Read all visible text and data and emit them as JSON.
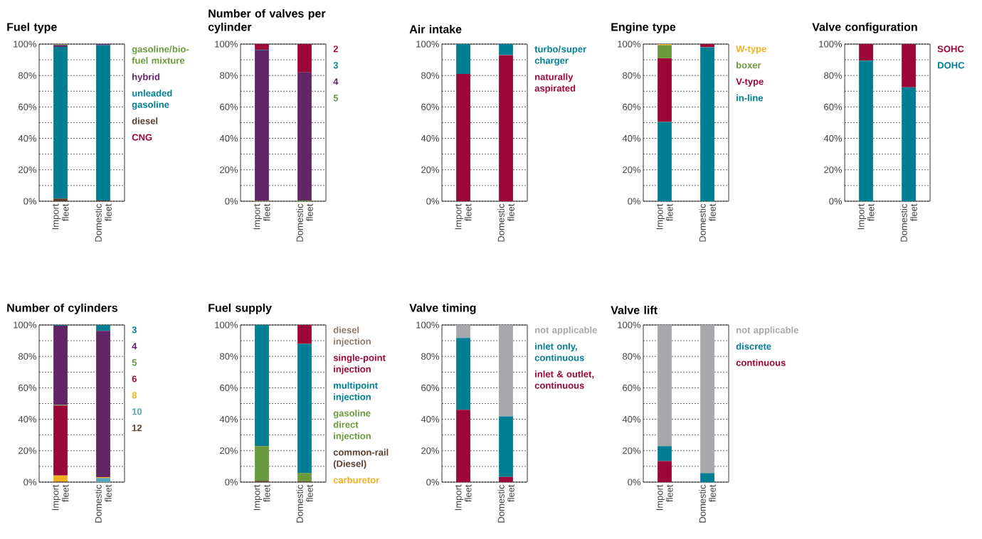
{
  "chart_data": [
    {
      "type": "bar",
      "stacked": true,
      "title": "Fuel type",
      "categories": [
        "Import fleet",
        "Domestic fleet"
      ],
      "ylim": [
        0,
        100
      ],
      "yticks": [
        {
          "value": 0,
          "label": "0%"
        },
        {
          "value": 10,
          "label": null
        },
        {
          "value": 20,
          "label": "20%"
        },
        {
          "value": 30,
          "label": null
        },
        {
          "value": 40,
          "label": "40%"
        },
        {
          "value": 50,
          "label": null
        },
        {
          "value": 60,
          "label": "60%"
        },
        {
          "value": 70,
          "label": null
        },
        {
          "value": 80,
          "label": "80%"
        },
        {
          "value": 90,
          "label": null
        },
        {
          "value": 100,
          "label": "100%"
        }
      ],
      "grid": "y",
      "legend": "right",
      "series": [
        {
          "name": "CNG",
          "color": "#9b0737",
          "values": [
            null,
            0
          ]
        },
        {
          "name": "diesel",
          "color": "#5c3d2e",
          "values": [
            1.7,
            0.5
          ]
        },
        {
          "name": "unleaded gasoline",
          "color": "#007f94",
          "values": [
            96.5,
            98.8
          ]
        },
        {
          "name": "hybrid",
          "color": "#622567",
          "values": [
            1.2,
            0.7
          ]
        },
        {
          "name": "gasoline/bio-fuel mixture",
          "color": "#6a983c",
          "values": [
            0.6,
            0
          ]
        }
      ]
    },
    {
      "type": "bar",
      "stacked": true,
      "title": "Number of valves per cylinder",
      "categories": [
        "Import fleet",
        "Domestic fleet"
      ],
      "ylim": [
        0,
        100
      ],
      "yticks": [
        {
          "value": 0,
          "label": "0%"
        },
        {
          "value": 10,
          "label": null
        },
        {
          "value": 20,
          "label": "20%"
        },
        {
          "value": 30,
          "label": null
        },
        {
          "value": 40,
          "label": "40%"
        },
        {
          "value": 50,
          "label": null
        },
        {
          "value": 60,
          "label": "60%"
        },
        {
          "value": 70,
          "label": null
        },
        {
          "value": 80,
          "label": "80%"
        },
        {
          "value": 90,
          "label": null
        },
        {
          "value": 100,
          "label": "100%"
        }
      ],
      "grid": "y",
      "legend": "right",
      "series": [
        {
          "name": "5",
          "color": "#6a983c",
          "values": [
            0.3,
            0.5
          ]
        },
        {
          "name": "4",
          "color": "#622567",
          "values": [
            95.7,
            81.5
          ]
        },
        {
          "name": "3",
          "color": "#007f94",
          "values": [
            0.4,
            0
          ]
        },
        {
          "name": "2",
          "color": "#9b0737",
          "values": [
            3.6,
            18
          ]
        }
      ]
    },
    {
      "type": "bar",
      "stacked": true,
      "title": "Air intake",
      "categories": [
        "Import fleet",
        "Domestic fleet"
      ],
      "ylim": [
        0,
        100
      ],
      "yticks": [
        {
          "value": 0,
          "label": "0%"
        },
        {
          "value": 10,
          "label": null
        },
        {
          "value": 20,
          "label": "20%"
        },
        {
          "value": 30,
          "label": null
        },
        {
          "value": 40,
          "label": "40%"
        },
        {
          "value": 50,
          "label": null
        },
        {
          "value": 60,
          "label": "60%"
        },
        {
          "value": 70,
          "label": null
        },
        {
          "value": 80,
          "label": "80%"
        },
        {
          "value": 90,
          "label": null
        },
        {
          "value": 100,
          "label": "100%"
        }
      ],
      "grid": "y",
      "legend": "right",
      "series": [
        {
          "name": "naturally aspirated",
          "color": "#9b0737",
          "values": [
            81,
            93
          ]
        },
        {
          "name": "turbo/super charger",
          "color": "#007f94",
          "values": [
            19,
            7
          ]
        }
      ]
    },
    {
      "type": "bar",
      "stacked": true,
      "title": "Engine type",
      "categories": [
        "Import fleet",
        "Domestic fleet"
      ],
      "ylim": [
        0,
        100
      ],
      "yticks": [
        {
          "value": 0,
          "label": "0%"
        },
        {
          "value": 10,
          "label": null
        },
        {
          "value": 20,
          "label": "20%"
        },
        {
          "value": 30,
          "label": null
        },
        {
          "value": 40,
          "label": "40%"
        },
        {
          "value": 50,
          "label": null
        },
        {
          "value": 60,
          "label": "60%"
        },
        {
          "value": 70,
          "label": null
        },
        {
          "value": 80,
          "label": "80%"
        },
        {
          "value": 90,
          "label": null
        },
        {
          "value": 100,
          "label": "100%"
        }
      ],
      "grid": "y",
      "legend": "right",
      "series": [
        {
          "name": "in-line",
          "color": "#007f94",
          "values": [
            50.5,
            98
          ]
        },
        {
          "name": "V-type",
          "color": "#9b0737",
          "values": [
            40.5,
            2
          ]
        },
        {
          "name": "boxer",
          "color": "#6a983c",
          "values": [
            8.3,
            0
          ]
        },
        {
          "name": "W-type",
          "color": "#f2b01e",
          "values": [
            0.7,
            0
          ]
        }
      ]
    },
    {
      "type": "bar",
      "stacked": true,
      "title": "Valve configuration",
      "categories": [
        "Import fleet",
        "Domestic fleet"
      ],
      "ylim": [
        0,
        100
      ],
      "yticks": [
        {
          "value": 0,
          "label": "0%"
        },
        {
          "value": 10,
          "label": null
        },
        {
          "value": 20,
          "label": "20%"
        },
        {
          "value": 30,
          "label": null
        },
        {
          "value": 40,
          "label": "40%"
        },
        {
          "value": 50,
          "label": null
        },
        {
          "value": 60,
          "label": "60%"
        },
        {
          "value": 70,
          "label": null
        },
        {
          "value": 80,
          "label": "80%"
        },
        {
          "value": 90,
          "label": null
        },
        {
          "value": 100,
          "label": "100%"
        }
      ],
      "grid": "y",
      "legend": "right",
      "series": [
        {
          "name": "DOHC",
          "color": "#007f94",
          "values": [
            89.5,
            72.5
          ]
        },
        {
          "name": "SOHC",
          "color": "#9b0737",
          "values": [
            10.5,
            27.5
          ]
        }
      ]
    },
    {
      "type": "bar",
      "stacked": true,
      "title": "Number of cylinders",
      "categories": [
        "Import fleet",
        "Domestic fleet"
      ],
      "ylim": [
        0,
        100
      ],
      "yticks": [
        {
          "value": 0,
          "label": "0%"
        },
        {
          "value": 10,
          "label": null
        },
        {
          "value": 20,
          "label": "20%"
        },
        {
          "value": 30,
          "label": null
        },
        {
          "value": 40,
          "label": "40%"
        },
        {
          "value": 50,
          "label": null
        },
        {
          "value": 60,
          "label": "60%"
        },
        {
          "value": 70,
          "label": null
        },
        {
          "value": 80,
          "label": "80%"
        },
        {
          "value": 90,
          "label": null
        },
        {
          "value": 100,
          "label": "100%"
        }
      ],
      "grid": "y",
      "legend": "right",
      "series": [
        {
          "name": "12",
          "color": "#5c3d2e",
          "values": [
            0.3,
            0
          ]
        },
        {
          "name": "10",
          "color": "#5aa5b8",
          "values": [
            0,
            2.6
          ]
        },
        {
          "name": "8",
          "color": "#f2b01e",
          "values": [
            3.9,
            0.6
          ]
        },
        {
          "name": "6",
          "color": "#9b0737",
          "values": [
            44.5,
            0
          ]
        },
        {
          "name": "5",
          "color": "#6a983c",
          "values": [
            0.5,
            0
          ]
        },
        {
          "name": "4",
          "color": "#622567",
          "values": [
            50.3,
            93.1
          ]
        },
        {
          "name": "3",
          "color": "#007f94",
          "values": [
            0.5,
            3.7
          ]
        }
      ]
    },
    {
      "type": "bar",
      "stacked": true,
      "title": "Fuel supply",
      "categories": [
        "Import fleet",
        "Domestic fleet"
      ],
      "ylim": [
        0,
        100
      ],
      "yticks": [
        {
          "value": 0,
          "label": "0%"
        },
        {
          "value": 10,
          "label": null
        },
        {
          "value": 20,
          "label": "20%"
        },
        {
          "value": 30,
          "label": null
        },
        {
          "value": 40,
          "label": "40%"
        },
        {
          "value": 50,
          "label": null
        },
        {
          "value": 60,
          "label": "60%"
        },
        {
          "value": 70,
          "label": null
        },
        {
          "value": 80,
          "label": "80%"
        },
        {
          "value": 90,
          "label": null
        },
        {
          "value": 100,
          "label": "100%"
        }
      ],
      "grid": "y",
      "legend": "right",
      "series": [
        {
          "name": "carburetor",
          "color": "#f2b01e",
          "values": [
            0,
            0
          ]
        },
        {
          "name": "common-rail (Diesel)",
          "color": "#5c3d2e",
          "values": [
            0.8,
            0.5
          ]
        },
        {
          "name": "gasoline direct injection",
          "color": "#6a983c",
          "values": [
            22.2,
            5.3
          ]
        },
        {
          "name": "multipoint injection",
          "color": "#007f94",
          "values": [
            77,
            82.2
          ]
        },
        {
          "name": "single-point injection",
          "color": "#9b0737",
          "values": [
            0,
            12
          ]
        },
        {
          "name": "diesel injection",
          "color": "#8c7a6e",
          "values": [
            0,
            0
          ]
        }
      ]
    },
    {
      "type": "bar",
      "stacked": true,
      "title": "Valve timing",
      "categories": [
        "Import fleet",
        "Domestic fleet"
      ],
      "ylim": [
        0,
        100
      ],
      "yticks": [
        {
          "value": 0,
          "label": "0%"
        },
        {
          "value": 10,
          "label": null
        },
        {
          "value": 20,
          "label": "20%"
        },
        {
          "value": 30,
          "label": null
        },
        {
          "value": 40,
          "label": "40%"
        },
        {
          "value": 50,
          "label": null
        },
        {
          "value": 60,
          "label": "60%"
        },
        {
          "value": 70,
          "label": null
        },
        {
          "value": 80,
          "label": "80%"
        },
        {
          "value": 90,
          "label": null
        },
        {
          "value": 100,
          "label": "100%"
        }
      ],
      "grid": "y",
      "legend": "right",
      "series": [
        {
          "name": "inlet & outlet, continuous",
          "color": "#9b0737",
          "values": [
            46,
            3.3
          ]
        },
        {
          "name": "inlet only, continuous",
          "color": "#007f94",
          "values": [
            45.7,
            38.5
          ]
        },
        {
          "name": "not applicable",
          "color": "#a7a8ac",
          "values": [
            8.3,
            58.2
          ]
        }
      ]
    },
    {
      "type": "bar",
      "stacked": true,
      "title": "Valve lift",
      "categories": [
        "Import fleet",
        "Domestic fleet"
      ],
      "ylim": [
        0,
        100
      ],
      "yticks": [
        {
          "value": 0,
          "label": "0%"
        },
        {
          "value": 10,
          "label": null
        },
        {
          "value": 20,
          "label": "20%"
        },
        {
          "value": 30,
          "label": null
        },
        {
          "value": 40,
          "label": "40%"
        },
        {
          "value": 50,
          "label": null
        },
        {
          "value": 60,
          "label": "60%"
        },
        {
          "value": 70,
          "label": null
        },
        {
          "value": 80,
          "label": "80%"
        },
        {
          "value": 90,
          "label": null
        },
        {
          "value": 100,
          "label": "100%"
        }
      ],
      "grid": "y",
      "legend": "right",
      "series": [
        {
          "name": "continuous",
          "color": "#9b0737",
          "values": [
            13.4,
            0
          ]
        },
        {
          "name": "discrete",
          "color": "#007f94",
          "values": [
            9.5,
            5.7
          ]
        },
        {
          "name": "not applicable",
          "color": "#a7a8ac",
          "values": [
            77.1,
            94.3
          ]
        }
      ]
    }
  ]
}
